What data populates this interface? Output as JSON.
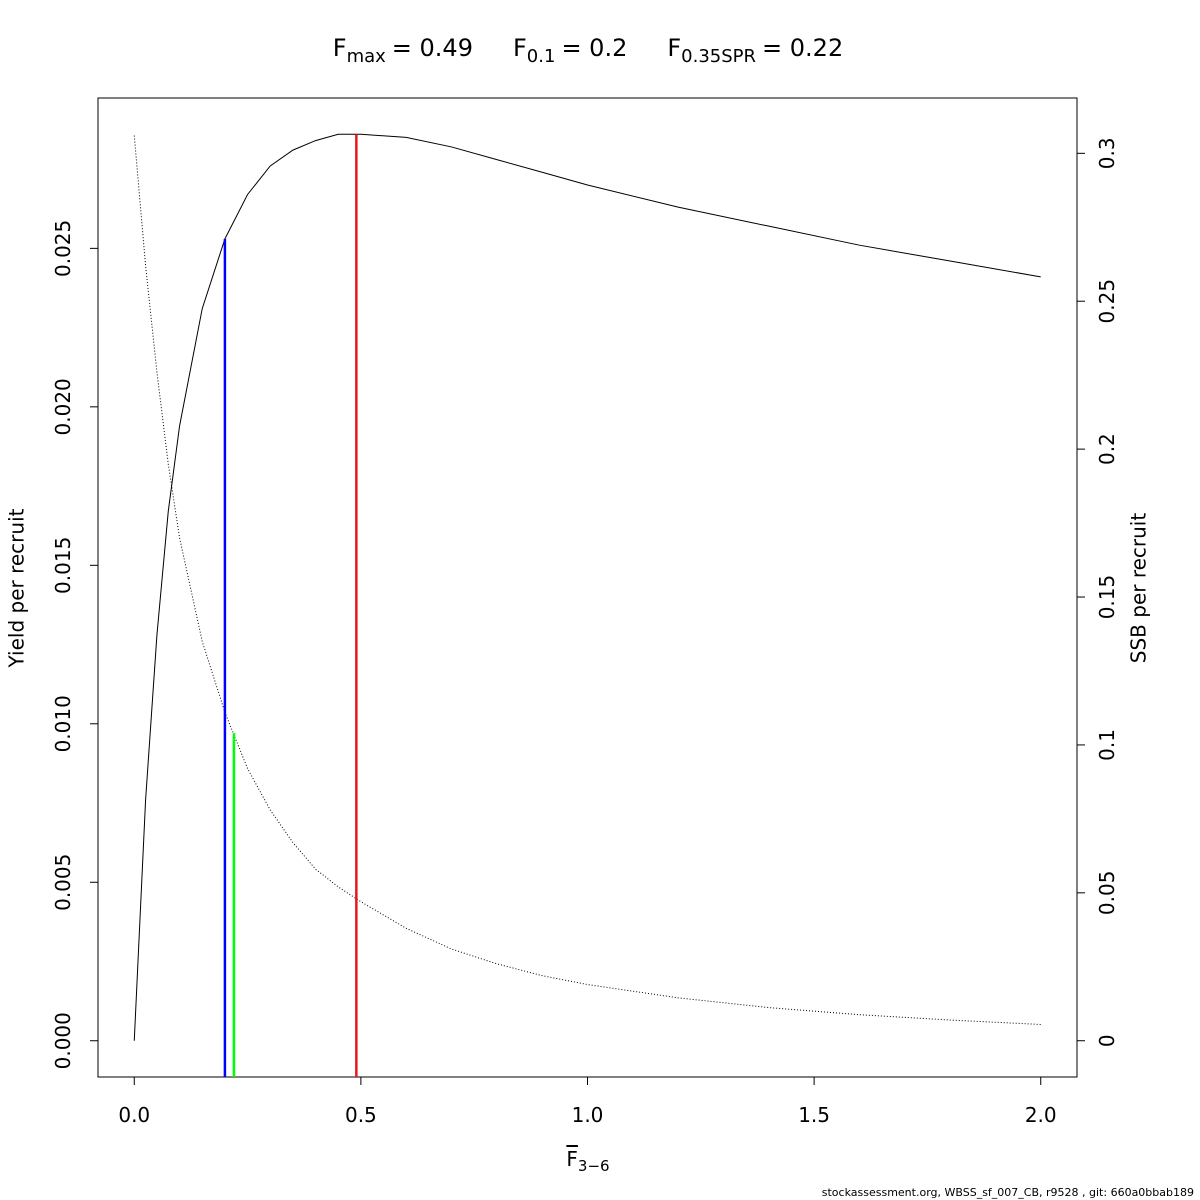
{
  "chart_data": {
    "type": "line",
    "reference_lines": [
      {
        "symbol": "F",
        "subscript": "max",
        "label": "= 0.49",
        "x": 0.49,
        "top": 0.0286,
        "color": "#e41a1c"
      },
      {
        "symbol": "F",
        "subscript": "0.1",
        "label": "= 0.2",
        "x": 0.2,
        "top": 0.0253,
        "color": "#0000ff"
      },
      {
        "symbol": "F",
        "subscript": "0.35SPR",
        "label": "= 0.22",
        "x": 0.22,
        "top": 0.104,
        "axis": "y2",
        "color": "#00ff00"
      }
    ],
    "xlabel": {
      "symbol": "F",
      "subscript": "3−6"
    },
    "ylabel": "Yield per recruit",
    "y2label": "SSB per recruit",
    "footer": "stockassessment.org, WBSS_sf_007_CB, r9528 , git: 660a0bbab189",
    "x": [
      0,
      0.025,
      0.05,
      0.075,
      0.1,
      0.15,
      0.2,
      0.25,
      0.3,
      0.35,
      0.4,
      0.45,
      0.5,
      0.6,
      0.7,
      0.8,
      0.9,
      1.0,
      1.2,
      1.4,
      1.6,
      1.8,
      2.0
    ],
    "series": [
      {
        "name": "Yield per recruit",
        "color": "#000000",
        "style": "solid",
        "values": [
          0,
          0.0076,
          0.0128,
          0.0167,
          0.0194,
          0.0231,
          0.0253,
          0.0267,
          0.0276,
          0.0281,
          0.0284,
          0.0286,
          0.0286,
          0.0285,
          0.0282,
          0.0278,
          0.0274,
          0.027,
          0.0263,
          0.0257,
          0.0251,
          0.0246,
          0.0241
        ]
      },
      {
        "name": "SSB per recruit",
        "color": "#000000",
        "style": "dotted",
        "axis": "y2",
        "values": [
          0.306,
          0.262,
          0.226,
          0.195,
          0.17,
          0.135,
          0.111,
          0.092,
          0.078,
          0.067,
          0.058,
          0.052,
          0.047,
          0.038,
          0.031,
          0.026,
          0.022,
          0.019,
          0.0145,
          0.0112,
          0.0088,
          0.007,
          0.0055
        ]
      }
    ],
    "xlim": [
      -0.08,
      2.08
    ],
    "xticks": [
      {
        "value": 0,
        "label": "0.0"
      },
      0.5,
      {
        "value": 1,
        "label": "1.0"
      },
      1.5,
      {
        "value": 2,
        "label": "2.0"
      }
    ],
    "ylim": [
      -0.001144,
      0.029744
    ],
    "yticks": [
      {
        "value": 0,
        "label": "0.000"
      },
      {
        "value": 0.005,
        "label": "0.005"
      },
      {
        "value": 0.01,
        "label": "0.010"
      },
      {
        "value": 0.015,
        "label": "0.015"
      },
      {
        "value": 0.02,
        "label": "0.020"
      },
      {
        "value": 0.025,
        "label": "0.025"
      }
    ],
    "y2lim": [
      -0.01226,
      0.3187
    ],
    "y2ticks": [
      0,
      0.05,
      0.1,
      0.15,
      0.2,
      0.25,
      0.3
    ]
  }
}
